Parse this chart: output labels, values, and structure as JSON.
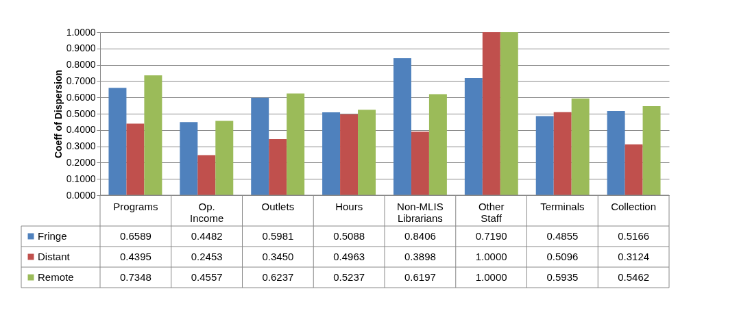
{
  "chart_data": {
    "type": "bar",
    "ylabel": "Coeff of Dispersion",
    "categories": [
      "Programs",
      "Op. Income",
      "Outlets",
      "Hours",
      "Non-MLIS Librarians",
      "Other Staff",
      "Terminals",
      "Collection"
    ],
    "series": [
      {
        "name": "Fringe",
        "color": "#4f81bd",
        "values": [
          0.6589,
          0.4482,
          0.5981,
          0.5088,
          0.8406,
          0.719,
          0.4855,
          0.5166
        ],
        "value_labels": [
          "0.6589",
          "0.4482",
          "0.5981",
          "0.5088",
          "0.8406",
          "0.7190",
          "0.4855",
          "0.5166"
        ]
      },
      {
        "name": "Distant",
        "color": "#c0504d",
        "values": [
          0.4395,
          0.2453,
          0.345,
          0.4963,
          0.3898,
          1.0,
          0.5096,
          0.3124
        ],
        "value_labels": [
          "0.4395",
          "0.2453",
          "0.3450",
          "0.4963",
          "0.3898",
          "1.0000",
          "0.5096",
          "0.3124"
        ]
      },
      {
        "name": "Remote",
        "color": "#9bbb59",
        "values": [
          0.7348,
          0.4557,
          0.6237,
          0.5237,
          0.6197,
          1.0,
          0.5935,
          0.5462
        ],
        "value_labels": [
          "0.7348",
          "0.4557",
          "0.6237",
          "0.5237",
          "0.6197",
          "1.0000",
          "0.5935",
          "0.5462"
        ]
      }
    ],
    "ylim": [
      0,
      1
    ],
    "yticks": [
      {
        "value": 0,
        "label": "0.0000"
      },
      {
        "value": 0.1,
        "label": "0.1000"
      },
      {
        "value": 0.2,
        "label": "0.2000"
      },
      {
        "value": 0.3,
        "label": "0.3000"
      },
      {
        "value": 0.4,
        "label": "0.4000"
      },
      {
        "value": 0.5,
        "label": "0.5000"
      },
      {
        "value": 0.6,
        "label": "0.6000"
      },
      {
        "value": 0.7,
        "label": "0.7000"
      },
      {
        "value": 0.8,
        "label": "0.8000"
      },
      {
        "value": 0.9,
        "label": "0.9000"
      },
      {
        "value": 1,
        "label": "1.0000"
      }
    ],
    "grid": "y",
    "legend": "bottom"
  }
}
